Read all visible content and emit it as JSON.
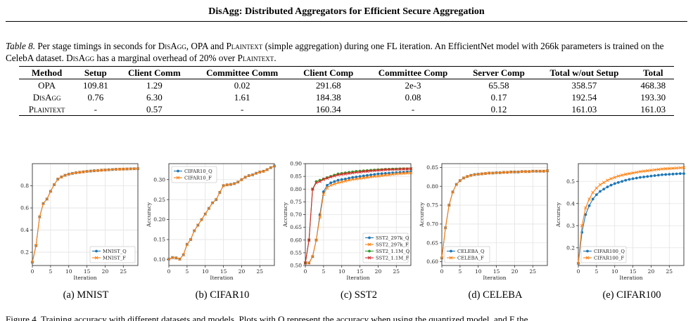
{
  "header": {
    "title": "DisAgg: Distributed Aggregators for Efficient Secure Aggregation"
  },
  "caption": {
    "label": "Table 8.",
    "segments": [
      {
        "t": " Per stage timings in seconds for ",
        "sc": false
      },
      {
        "t": "DisAgg",
        "sc": true
      },
      {
        "t": ", OPA and ",
        "sc": false
      },
      {
        "t": "Plaintext",
        "sc": true
      },
      {
        "t": " (simple aggregation) during one FL iteration. An EfficientNet model with 266k parameters is trained on the CelebA dataset. ",
        "sc": false
      },
      {
        "t": "DisAgg",
        "sc": true
      },
      {
        "t": " has a marginal overhead of 20% over ",
        "sc": false
      },
      {
        "t": "Plaintext",
        "sc": true
      },
      {
        "t": ".",
        "sc": false
      }
    ]
  },
  "table": {
    "headers": [
      "Method",
      "Setup",
      "Client Comm",
      "Committee Comm",
      "Client Comp",
      "Committee Comp",
      "Server Comp",
      "Total w/out Setup",
      "Total"
    ],
    "rows": [
      {
        "method": "OPA",
        "sc": false,
        "cells": [
          "109.81",
          "1.29",
          "0.02",
          "291.68",
          "2e-3",
          "65.58",
          "358.57",
          "468.38"
        ]
      },
      {
        "method": "DisAgg",
        "sc": true,
        "cells": [
          "0.76",
          "6.30",
          "1.61",
          "184.38",
          "0.08",
          "0.17",
          "192.54",
          "193.30"
        ]
      },
      {
        "method": "Plaintext",
        "sc": true,
        "cells": [
          "-",
          "0.57",
          "-",
          "160.34",
          "-",
          "0.12",
          "161.03",
          "161.03"
        ]
      }
    ]
  },
  "chart_data": [
    {
      "type": "line",
      "caption": "(a) MNIST",
      "xlabel": "Iteration",
      "ylabel": "",
      "xlim": [
        0,
        29
      ],
      "ylim": [
        0.08,
        1.0
      ],
      "xticks": [
        0,
        5,
        10,
        15,
        20,
        25
      ],
      "yticks": [
        0.2,
        0.4,
        0.6,
        0.8
      ],
      "yfmt": 1,
      "grid": true,
      "legend": "lower-right",
      "series": [
        {
          "name": "MNIST_Q",
          "color": "#1f77b4",
          "marker": "circle",
          "values": [
            0.11,
            0.26,
            0.52,
            0.64,
            0.68,
            0.75,
            0.81,
            0.86,
            0.88,
            0.895,
            0.905,
            0.912,
            0.918,
            0.922,
            0.926,
            0.93,
            0.933,
            0.936,
            0.938,
            0.941,
            0.943,
            0.945,
            0.947,
            0.949,
            0.95,
            0.951,
            0.952,
            0.953,
            0.954,
            0.955
          ]
        },
        {
          "name": "MNIST_F",
          "color": "#ff7f0e",
          "marker": "x",
          "values": [
            0.11,
            0.26,
            0.52,
            0.64,
            0.68,
            0.75,
            0.81,
            0.86,
            0.88,
            0.895,
            0.905,
            0.912,
            0.918,
            0.922,
            0.926,
            0.93,
            0.933,
            0.936,
            0.938,
            0.941,
            0.943,
            0.945,
            0.947,
            0.949,
            0.95,
            0.951,
            0.952,
            0.953,
            0.954,
            0.955
          ]
        }
      ]
    },
    {
      "type": "line",
      "caption": "(b) CIFAR10",
      "xlabel": "Iteration",
      "ylabel": "Accuracy",
      "xlim": [
        0,
        29
      ],
      "ylim": [
        0.085,
        0.34
      ],
      "xticks": [
        0,
        5,
        10,
        15,
        20,
        25
      ],
      "yticks": [
        0.1,
        0.15,
        0.2,
        0.25,
        0.3
      ],
      "yfmt": 2,
      "grid": true,
      "legend": "top-left",
      "series": [
        {
          "name": "CIFAR10_Q",
          "color": "#1f77b4",
          "marker": "circle",
          "values": [
            0.101,
            0.105,
            0.104,
            0.101,
            0.112,
            0.138,
            0.15,
            0.172,
            0.186,
            0.2,
            0.214,
            0.228,
            0.242,
            0.25,
            0.268,
            0.285,
            0.287,
            0.288,
            0.29,
            0.294,
            0.3,
            0.306,
            0.31,
            0.312,
            0.316,
            0.319,
            0.321,
            0.325,
            0.33,
            0.334
          ]
        },
        {
          "name": "CIFAR10_F",
          "color": "#ff7f0e",
          "marker": "x",
          "values": [
            0.101,
            0.105,
            0.104,
            0.101,
            0.112,
            0.138,
            0.15,
            0.172,
            0.186,
            0.2,
            0.214,
            0.228,
            0.242,
            0.25,
            0.268,
            0.285,
            0.287,
            0.288,
            0.29,
            0.294,
            0.3,
            0.306,
            0.31,
            0.312,
            0.316,
            0.319,
            0.321,
            0.325,
            0.33,
            0.334
          ]
        }
      ]
    },
    {
      "type": "line",
      "caption": "(c) SST2",
      "xlabel": "Iteration",
      "ylabel": "Accuracy",
      "xlim": [
        0,
        29
      ],
      "ylim": [
        0.5,
        0.9
      ],
      "xticks": [
        0,
        5,
        10,
        15,
        20,
        25
      ],
      "yticks": [
        0.5,
        0.55,
        0.6,
        0.65,
        0.7,
        0.75,
        0.8,
        0.85,
        0.9
      ],
      "yfmt": 2,
      "grid": true,
      "legend": "lower-right",
      "series": [
        {
          "name": "SST2_297k_Q",
          "color": "#1f77b4",
          "marker": "circle",
          "values": [
            0.51,
            0.51,
            0.535,
            0.6,
            0.7,
            0.79,
            0.815,
            0.825,
            0.83,
            0.835,
            0.838,
            0.84,
            0.843,
            0.846,
            0.848,
            0.85,
            0.852,
            0.854,
            0.856,
            0.858,
            0.86,
            0.861,
            0.862,
            0.863,
            0.864,
            0.865,
            0.866,
            0.867,
            0.868,
            0.869
          ]
        },
        {
          "name": "SST2_297k_F",
          "color": "#ff7f0e",
          "marker": "x",
          "values": [
            0.51,
            0.51,
            0.535,
            0.6,
            0.69,
            0.78,
            0.805,
            0.815,
            0.82,
            0.825,
            0.828,
            0.832,
            0.835,
            0.838,
            0.84,
            0.842,
            0.844,
            0.846,
            0.848,
            0.85,
            0.851,
            0.853,
            0.855,
            0.856,
            0.858,
            0.86,
            0.861,
            0.862,
            0.863,
            0.864
          ]
        },
        {
          "name": "SST2_1.1M_Q",
          "color": "#2ca02c",
          "marker": "circle",
          "values": [
            0.51,
            0.6,
            0.8,
            0.83,
            0.835,
            0.84,
            0.845,
            0.85,
            0.855,
            0.86,
            0.862,
            0.864,
            0.866,
            0.868,
            0.87,
            0.871,
            0.872,
            0.873,
            0.874,
            0.875,
            0.876,
            0.877,
            0.878,
            0.878,
            0.879,
            0.879,
            0.88,
            0.88,
            0.88,
            0.88
          ]
        },
        {
          "name": "SST2_1.1M_F",
          "color": "#d62728",
          "marker": "x",
          "values": [
            0.51,
            0.6,
            0.8,
            0.825,
            0.83,
            0.838,
            0.843,
            0.848,
            0.852,
            0.856,
            0.858,
            0.86,
            0.862,
            0.864,
            0.866,
            0.867,
            0.869,
            0.87,
            0.872,
            0.873,
            0.874,
            0.875,
            0.876,
            0.877,
            0.877,
            0.878,
            0.878,
            0.879,
            0.879,
            0.88
          ]
        }
      ]
    },
    {
      "type": "line",
      "caption": "(d) CELEBA",
      "xlabel": "Iteration",
      "ylabel": "Accuracy",
      "xlim": [
        0,
        29
      ],
      "ylim": [
        0.59,
        0.86
      ],
      "xticks": [
        0,
        5,
        10,
        15,
        20,
        25
      ],
      "yticks": [
        0.6,
        0.65,
        0.7,
        0.75,
        0.8,
        0.85
      ],
      "yfmt": 2,
      "grid": true,
      "legend": "lower-left",
      "series": [
        {
          "name": "CELEBA_Q",
          "color": "#1f77b4",
          "marker": "circle",
          "values": [
            0.61,
            0.69,
            0.75,
            0.785,
            0.805,
            0.815,
            0.822,
            0.826,
            0.829,
            0.831,
            0.832,
            0.833,
            0.834,
            0.835,
            0.835,
            0.836,
            0.836,
            0.837,
            0.837,
            0.838,
            0.838,
            0.838,
            0.839,
            0.839,
            0.839,
            0.84,
            0.84,
            0.84,
            0.84,
            0.841
          ]
        },
        {
          "name": "CELEBA_F",
          "color": "#ff7f0e",
          "marker": "x",
          "values": [
            0.61,
            0.69,
            0.75,
            0.785,
            0.805,
            0.815,
            0.822,
            0.826,
            0.829,
            0.831,
            0.832,
            0.833,
            0.834,
            0.835,
            0.835,
            0.836,
            0.836,
            0.837,
            0.837,
            0.838,
            0.838,
            0.838,
            0.839,
            0.839,
            0.839,
            0.84,
            0.84,
            0.84,
            0.84,
            0.841
          ]
        }
      ]
    },
    {
      "type": "line",
      "caption": "(e) CIFAR100",
      "xlabel": "Iteration",
      "ylabel": "Accuracy",
      "xlim": [
        0,
        29
      ],
      "ylim": [
        0.12,
        0.58
      ],
      "xticks": [
        0,
        5,
        10,
        15,
        20,
        25
      ],
      "yticks": [
        0.2,
        0.3,
        0.4,
        0.5
      ],
      "yfmt": 1,
      "grid": true,
      "legend": "lower-left",
      "series": [
        {
          "name": "CIFAR100_Q",
          "color": "#1f77b4",
          "marker": "circle",
          "values": [
            0.13,
            0.27,
            0.35,
            0.39,
            0.42,
            0.44,
            0.455,
            0.465,
            0.475,
            0.483,
            0.49,
            0.495,
            0.5,
            0.505,
            0.509,
            0.512,
            0.515,
            0.518,
            0.52,
            0.522,
            0.524,
            0.526,
            0.528,
            0.53,
            0.531,
            0.532,
            0.533,
            0.534,
            0.535,
            0.535
          ]
        },
        {
          "name": "CIFAR100_F",
          "color": "#ff7f0e",
          "marker": "x",
          "values": [
            0.13,
            0.3,
            0.38,
            0.42,
            0.45,
            0.47,
            0.485,
            0.495,
            0.505,
            0.512,
            0.518,
            0.524,
            0.528,
            0.532,
            0.535,
            0.538,
            0.541,
            0.544,
            0.546,
            0.548,
            0.55,
            0.552,
            0.554,
            0.556,
            0.557,
            0.558,
            0.559,
            0.56,
            0.561,
            0.562
          ]
        }
      ]
    }
  ],
  "footer": {
    "text": "Figure 4. Training accuracy with different datasets and models. Plots with Q represent the accuracy when using the quantized model, and F the"
  }
}
